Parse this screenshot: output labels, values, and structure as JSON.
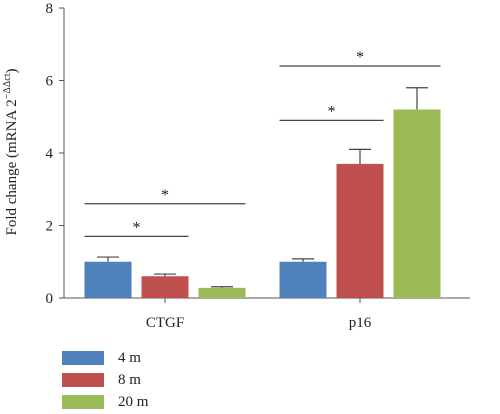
{
  "chart_data": {
    "type": "bar",
    "categories": [
      "CTGF",
      "p16"
    ],
    "ylabel_prefix": "Fold change (mRNA 2",
    "ylabel_exp": "−ΔΔct",
    "ylabel_suffix": ")",
    "ylim": [
      0,
      8
    ],
    "yticks": [
      0,
      2,
      4,
      6,
      8
    ],
    "series": [
      {
        "name": "4 m",
        "color": "#4f81bd",
        "values": [
          1.0,
          1.0
        ],
        "errors": [
          0.13,
          0.08
        ]
      },
      {
        "name": "8 m",
        "color": "#c0504d",
        "values": [
          0.6,
          3.7
        ],
        "errors": [
          0.06,
          0.4
        ]
      },
      {
        "name": "20 m",
        "color": "#9bbb59",
        "values": [
          0.28,
          5.2
        ],
        "errors": [
          0.03,
          0.6
        ]
      }
    ],
    "significance": [
      {
        "category": 0,
        "from_series": 0,
        "to_series": 1,
        "y": 1.7,
        "label": "*"
      },
      {
        "category": 0,
        "from_series": 0,
        "to_series": 2,
        "y": 2.6,
        "label": "*"
      },
      {
        "category": 1,
        "from_series": 0,
        "to_series": 1,
        "y": 4.9,
        "label": "*"
      },
      {
        "category": 1,
        "from_series": 0,
        "to_series": 2,
        "y": 6.4,
        "label": "*"
      }
    ],
    "grid": false,
    "legend_position": "bottom-left"
  }
}
